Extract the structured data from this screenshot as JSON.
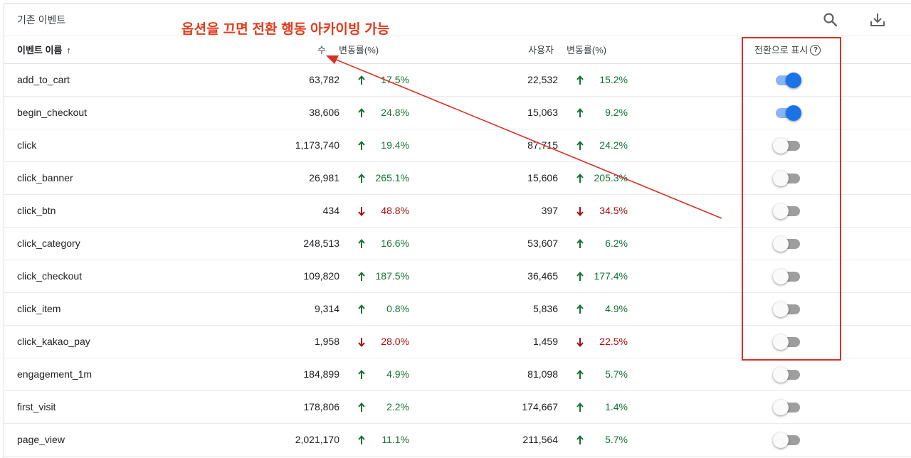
{
  "card_title": "기존 이벤트",
  "annotation": "옵션을 끄면 전환 행동 아카이빙 가능",
  "toolbar": {
    "search_icon": "search-icon",
    "download_icon": "download-icon"
  },
  "columns": {
    "name": "이벤트 이름",
    "name_sort": "↑",
    "count": "수",
    "count_change": "변동률(%)",
    "users": "사용자",
    "users_change": "변동률(%)",
    "conversion": "전환으로 표시",
    "help": "?"
  },
  "colors": {
    "up": "#137333",
    "down": "#a50e0e",
    "toggle_on": "#1a73e8",
    "annotation": "#e23a1c"
  },
  "rows": [
    {
      "name": "add_to_cart",
      "count": "63,782",
      "count_dir": "up",
      "count_change": "17.5%",
      "users": "22,532",
      "users_dir": "up",
      "users_change": "15.2%",
      "conversion": true
    },
    {
      "name": "begin_checkout",
      "count": "38,606",
      "count_dir": "up",
      "count_change": "24.8%",
      "users": "15,063",
      "users_dir": "up",
      "users_change": "9.2%",
      "conversion": true
    },
    {
      "name": "click",
      "count": "1,173,740",
      "count_dir": "up",
      "count_change": "19.4%",
      "users": "87,715",
      "users_dir": "up",
      "users_change": "24.2%",
      "conversion": false
    },
    {
      "name": "click_banner",
      "count": "26,981",
      "count_dir": "up",
      "count_change": "265.1%",
      "users": "15,606",
      "users_dir": "up",
      "users_change": "205.3%",
      "conversion": false
    },
    {
      "name": "click_btn",
      "count": "434",
      "count_dir": "down",
      "count_change": "48.8%",
      "users": "397",
      "users_dir": "down",
      "users_change": "34.5%",
      "conversion": false
    },
    {
      "name": "click_category",
      "count": "248,513",
      "count_dir": "up",
      "count_change": "16.6%",
      "users": "53,607",
      "users_dir": "up",
      "users_change": "6.2%",
      "conversion": false
    },
    {
      "name": "click_checkout",
      "count": "109,820",
      "count_dir": "up",
      "count_change": "187.5%",
      "users": "36,465",
      "users_dir": "up",
      "users_change": "177.4%",
      "conversion": false
    },
    {
      "name": "click_item",
      "count": "9,314",
      "count_dir": "up",
      "count_change": "0.8%",
      "users": "5,836",
      "users_dir": "up",
      "users_change": "4.9%",
      "conversion": false
    },
    {
      "name": "click_kakao_pay",
      "count": "1,958",
      "count_dir": "down",
      "count_change": "28.0%",
      "users": "1,459",
      "users_dir": "down",
      "users_change": "22.5%",
      "conversion": false
    },
    {
      "name": "engagement_1m",
      "count": "184,899",
      "count_dir": "up",
      "count_change": "4.9%",
      "users": "81,098",
      "users_dir": "up",
      "users_change": "5.7%",
      "conversion": false
    },
    {
      "name": "first_visit",
      "count": "178,806",
      "count_dir": "up",
      "count_change": "2.2%",
      "users": "174,667",
      "users_dir": "up",
      "users_change": "1.4%",
      "conversion": false
    },
    {
      "name": "page_view",
      "count": "2,021,170",
      "count_dir": "up",
      "count_change": "11.1%",
      "users": "211,564",
      "users_dir": "up",
      "users_change": "5.7%",
      "conversion": false
    }
  ]
}
